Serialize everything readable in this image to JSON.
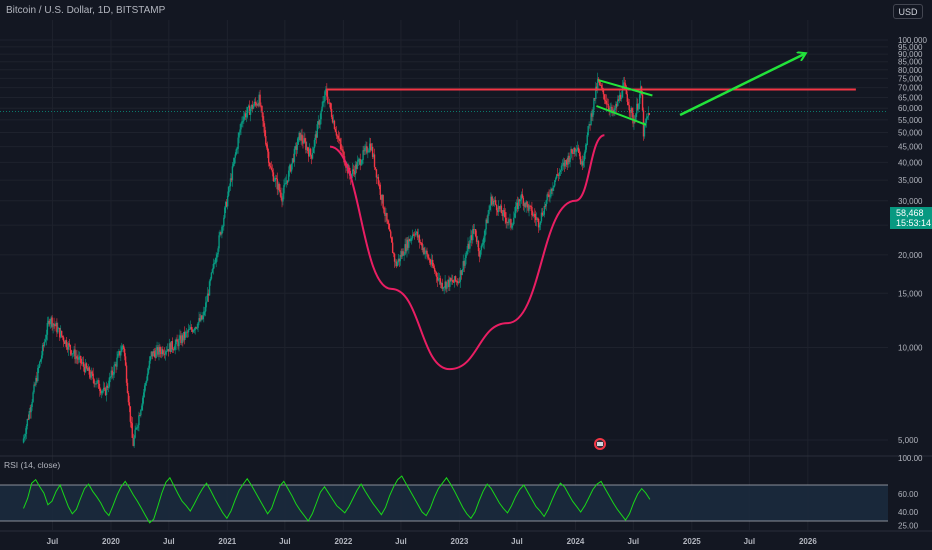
{
  "header": {
    "title": "Bitcoin / U.S. Dollar, 1D, BITSTAMP",
    "currency_button": "USD"
  },
  "price_badge": {
    "price": "58,468",
    "countdown": "15:53:14"
  },
  "rsi_panel": {
    "label": "RSI (14, close)",
    "upper_band": 70,
    "lower_band": 30
  },
  "colors": {
    "background": "#131722",
    "candle_up": "#089981",
    "candle_down": "#f23645",
    "resistance_line": "#f23645",
    "cup_curve": "#e91e63",
    "flag_lines": "#22e33a",
    "arrow": "#22e33a",
    "rsi_line": "#19d619",
    "rsi_band_fill": "#1b2a3d"
  },
  "chart_data": [
    {
      "type": "candlestick",
      "title": "Bitcoin / U.S. Dollar, 1D, BITSTAMP",
      "y_scale": "log",
      "ylim": [
        3500,
        105000
      ],
      "y_ticks": [
        100000,
        95000,
        90000,
        85000,
        80000,
        75000,
        70000,
        65000,
        60000,
        55000,
        50000,
        45000,
        40000,
        35000,
        30000,
        25000,
        20000,
        15000,
        10000,
        5000
      ],
      "y_tick_labels": [
        "100,000",
        "95,000",
        "90,000",
        "85,000",
        "80,000",
        "75,000",
        "70,000",
        "65,000",
        "60,000",
        "55,000",
        "50,000",
        "45,000",
        "40,000",
        "35,000",
        "30,000",
        "25,000",
        "20,000",
        "15,000",
        "10,000",
        "5,000"
      ],
      "x_tick_labels": [
        "Jul",
        "2020",
        "Jul",
        "2021",
        "Jul",
        "2022",
        "Jul",
        "2023",
        "Jul",
        "2024",
        "Jul",
        "2025",
        "Jul",
        "2026"
      ],
      "x_tick_dates": [
        "2019-07-01",
        "2020-01-01",
        "2020-07-01",
        "2021-01-01",
        "2021-07-01",
        "2022-01-01",
        "2022-07-01",
        "2023-01-01",
        "2023-07-01",
        "2024-01-01",
        "2024-07-01",
        "2025-01-01",
        "2025-07-01",
        "2026-01-01"
      ],
      "price_path": [
        [
          "2019-04-01",
          4900
        ],
        [
          "2019-06-25",
          12500
        ],
        [
          "2019-09-01",
          9800
        ],
        [
          "2019-12-15",
          7100
        ],
        [
          "2020-02-12",
          10300
        ],
        [
          "2020-03-13",
          4800
        ],
        [
          "2020-05-10",
          9500
        ],
        [
          "2020-07-25",
          10200
        ],
        [
          "2020-10-20",
          12500
        ],
        [
          "2020-12-31",
          29000
        ],
        [
          "2021-02-20",
          56000
        ],
        [
          "2021-04-14",
          64000
        ],
        [
          "2021-05-20",
          38000
        ],
        [
          "2021-06-25",
          31000
        ],
        [
          "2021-08-20",
          49000
        ],
        [
          "2021-09-25",
          42000
        ],
        [
          "2021-11-10",
          68000
        ],
        [
          "2021-12-20",
          47000
        ],
        [
          "2022-01-25",
          36000
        ],
        [
          "2022-03-30",
          46000
        ],
        [
          "2022-06-18",
          18500
        ],
        [
          "2022-08-15",
          24000
        ],
        [
          "2022-11-09",
          16000
        ],
        [
          "2022-12-31",
          16500
        ],
        [
          "2023-02-20",
          24500
        ],
        [
          "2023-03-10",
          20000
        ],
        [
          "2023-04-14",
          30500
        ],
        [
          "2023-06-15",
          25000
        ],
        [
          "2023-07-15",
          31000
        ],
        [
          "2023-09-10",
          25500
        ],
        [
          "2023-10-30",
          35000
        ],
        [
          "2024-01-10",
          46000
        ],
        [
          "2024-01-23",
          39000
        ],
        [
          "2024-03-14",
          73000
        ],
        [
          "2024-05-01",
          57000
        ],
        [
          "2024-06-05",
          71000
        ],
        [
          "2024-07-05",
          54000
        ],
        [
          "2024-07-29",
          69500
        ],
        [
          "2024-08-05",
          50000
        ],
        [
          "2024-08-22",
          58468
        ]
      ],
      "last_price": 58468,
      "annotations": [
        {
          "type": "horizontal_segment",
          "name": "resistance",
          "from": "2021-11-10",
          "to": "2026-06-01",
          "price": 69000
        },
        {
          "type": "curve",
          "name": "cup",
          "points": [
            [
              "2021-11-20",
              45000
            ],
            [
              "2022-06-01",
              15500
            ],
            [
              "2022-12-01",
              8500
            ],
            [
              "2023-06-01",
              12000
            ],
            [
              "2024-01-01",
              30000
            ],
            [
              "2024-04-01",
              49000
            ]
          ]
        },
        {
          "type": "line",
          "name": "flag-top",
          "from": [
            "2024-03-14",
            74000
          ],
          "to": [
            "2024-08-30",
            66000
          ]
        },
        {
          "type": "line",
          "name": "flag-bottom",
          "from": [
            "2024-03-07",
            61000
          ],
          "to": [
            "2024-08-10",
            53000
          ]
        },
        {
          "type": "arrow",
          "name": "breakout-arrow",
          "from": [
            "2024-11-25",
            57000
          ],
          "to": [
            "2025-12-20",
            90000
          ]
        }
      ]
    },
    {
      "type": "line",
      "title": "RSI (14, close)",
      "ylim": [
        20,
        100
      ],
      "y_ticks": [
        100,
        60,
        40,
        25
      ],
      "y_tick_labels": [
        "100.00",
        "60.00",
        "40.00",
        "25.00"
      ],
      "bands": [
        70,
        30
      ],
      "series": [
        {
          "values": [
            44,
            55,
            72,
            76,
            68,
            61,
            48,
            52,
            63,
            70,
            58,
            46,
            38,
            43,
            55,
            66,
            71,
            63,
            57,
            50,
            41,
            36,
            47,
            59,
            68,
            74,
            67,
            59,
            52,
            44,
            36,
            28,
            32,
            46,
            61,
            73,
            78,
            69,
            60,
            52,
            47,
            41,
            49,
            58,
            66,
            72,
            64,
            55,
            47,
            39,
            33,
            41,
            53,
            64,
            71,
            77,
            70,
            62,
            54,
            46,
            38,
            44,
            57,
            69,
            74,
            66,
            58,
            49,
            42,
            36,
            30,
            38,
            50,
            62,
            68,
            61,
            54,
            47,
            43,
            39,
            46,
            55,
            64,
            71,
            63,
            56,
            49,
            43,
            37,
            45,
            58,
            68,
            76,
            80,
            72,
            64,
            56,
            48,
            40,
            36,
            44,
            56,
            66,
            72,
            78,
            71,
            63,
            54,
            45,
            38,
            33,
            40,
            52,
            63,
            71,
            66,
            58,
            50,
            44,
            39,
            47,
            57,
            65,
            70,
            62,
            54,
            46,
            41,
            35,
            43,
            54,
            64,
            72,
            68,
            60,
            52,
            46,
            40,
            47,
            56,
            65,
            71,
            74,
            66,
            58,
            50,
            43,
            37,
            31,
            38,
            50,
            60,
            66,
            61,
            54
          ]
        }
      ]
    }
  ]
}
